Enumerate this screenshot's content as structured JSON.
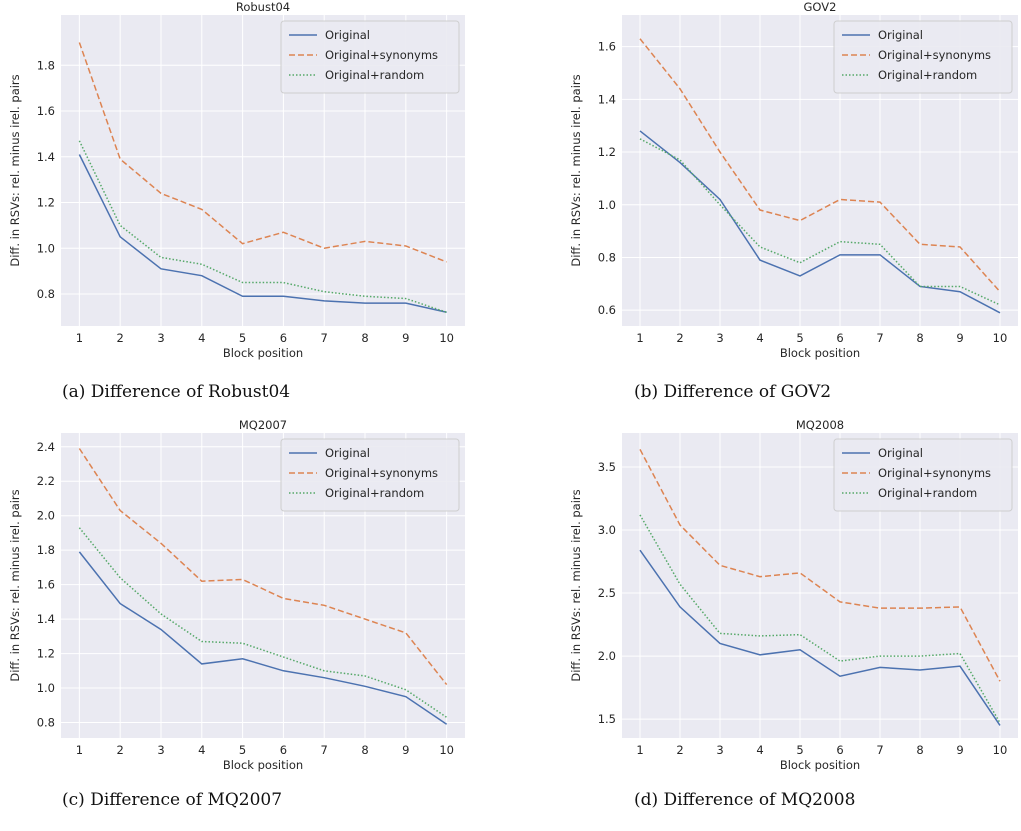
{
  "chart_data": [
    {
      "type": "line",
      "title": "Robust04",
      "caption": "(a) Difference of Robust04",
      "xlabel": "Block position",
      "ylabel": "Diff. in RSVs: rel. minus irel. pairs",
      "x": [
        1,
        2,
        3,
        4,
        5,
        6,
        7,
        8,
        9,
        10
      ],
      "xlim": [
        0.55,
        10.45
      ],
      "xticks": [
        1,
        2,
        3,
        4,
        5,
        6,
        7,
        8,
        9,
        10
      ],
      "ylim": [
        0.66,
        2.02
      ],
      "yticks": [
        0.8,
        {
          "value": 1,
          "label": "1.0"
        },
        1.2,
        1.4,
        1.6,
        1.8
      ],
      "grid": true,
      "legend": "upper right",
      "series": [
        {
          "name": "Original",
          "color": "#4c72b0",
          "linestyle": "solid",
          "values": [
            1.41,
            1.05,
            0.91,
            0.88,
            0.79,
            0.79,
            0.77,
            0.76,
            0.76,
            0.72
          ]
        },
        {
          "name": "Original+synonyms",
          "color": "#dd8452",
          "linestyle": "dashed",
          "values": [
            1.9,
            1.39,
            1.24,
            1.17,
            1.02,
            1.07,
            1.0,
            1.03,
            1.01,
            0.94
          ]
        },
        {
          "name": "Original+random",
          "color": "#55a868",
          "linestyle": "dotted",
          "values": [
            1.47,
            1.1,
            0.96,
            0.93,
            0.85,
            0.85,
            0.81,
            0.79,
            0.78,
            0.72
          ]
        }
      ]
    },
    {
      "type": "line",
      "title": "GOV2",
      "caption": "(b) Difference of GOV2",
      "xlabel": "Block position",
      "ylabel": "Diff. in RSVs: rel. minus irel. pairs",
      "x": [
        1,
        2,
        3,
        4,
        5,
        6,
        7,
        8,
        9,
        10
      ],
      "xlim": [
        0.55,
        10.45
      ],
      "xticks": [
        1,
        2,
        3,
        4,
        5,
        6,
        7,
        8,
        9,
        10
      ],
      "ylim": [
        0.54,
        1.72
      ],
      "yticks": [
        0.6,
        0.8,
        {
          "value": 1,
          "label": "1.0"
        },
        1.2,
        1.4,
        1.6
      ],
      "grid": true,
      "legend": "upper right",
      "series": [
        {
          "name": "Original",
          "color": "#4c72b0",
          "linestyle": "solid",
          "values": [
            1.28,
            1.16,
            1.02,
            0.79,
            0.73,
            0.81,
            0.81,
            0.69,
            0.67,
            0.59
          ]
        },
        {
          "name": "Original+synonyms",
          "color": "#dd8452",
          "linestyle": "dashed",
          "values": [
            1.63,
            1.44,
            1.2,
            0.98,
            0.94,
            1.02,
            1.01,
            0.85,
            0.84,
            0.67
          ]
        },
        {
          "name": "Original+random",
          "color": "#55a868",
          "linestyle": "dotted",
          "values": [
            1.25,
            1.17,
            1.0,
            0.84,
            0.78,
            0.86,
            0.85,
            0.69,
            0.69,
            0.62
          ]
        }
      ]
    },
    {
      "type": "line",
      "title": "MQ2007",
      "caption": "(c) Difference of MQ2007",
      "xlabel": "Block position",
      "ylabel": "Diff. in RSVs: rel. minus irel. pairs",
      "x": [
        1,
        2,
        3,
        4,
        5,
        6,
        7,
        8,
        9,
        10
      ],
      "xlim": [
        0.55,
        10.45
      ],
      "xticks": [
        1,
        2,
        3,
        4,
        5,
        6,
        7,
        8,
        9,
        10
      ],
      "ylim": [
        0.71,
        2.48
      ],
      "yticks": [
        0.8,
        {
          "value": 1,
          "label": "1.0"
        },
        1.2,
        1.4,
        1.6,
        1.8,
        {
          "value": 2,
          "label": "2.0"
        },
        2.2,
        2.4
      ],
      "grid": true,
      "legend": "upper right",
      "series": [
        {
          "name": "Original",
          "color": "#4c72b0",
          "linestyle": "solid",
          "values": [
            1.79,
            1.49,
            1.34,
            1.14,
            1.17,
            1.1,
            1.06,
            1.01,
            0.95,
            0.79
          ]
        },
        {
          "name": "Original+synonyms",
          "color": "#dd8452",
          "linestyle": "dashed",
          "values": [
            2.39,
            2.03,
            1.84,
            1.62,
            1.63,
            1.52,
            1.48,
            1.4,
            1.32,
            1.02
          ]
        },
        {
          "name": "Original+random",
          "color": "#55a868",
          "linestyle": "dotted",
          "values": [
            1.93,
            1.64,
            1.43,
            1.27,
            1.26,
            1.18,
            1.1,
            1.07,
            0.99,
            0.83
          ]
        }
      ]
    },
    {
      "type": "line",
      "title": "MQ2008",
      "caption": "(d) Difference of MQ2008",
      "xlabel": "Block position",
      "ylabel": "Diff. in RSVs: rel. minus irel. pairs",
      "x": [
        1,
        2,
        3,
        4,
        5,
        6,
        7,
        8,
        9,
        10
      ],
      "xlim": [
        0.55,
        10.45
      ],
      "xticks": [
        1,
        2,
        3,
        4,
        5,
        6,
        7,
        8,
        9,
        10
      ],
      "ylim": [
        1.35,
        3.77
      ],
      "yticks": [
        1.5,
        {
          "value": 2,
          "label": "2.0"
        },
        2.5,
        {
          "value": 3,
          "label": "3.0"
        },
        3.5
      ],
      "grid": true,
      "legend": "upper right",
      "series": [
        {
          "name": "Original",
          "color": "#4c72b0",
          "linestyle": "solid",
          "values": [
            2.84,
            2.39,
            2.1,
            2.01,
            2.05,
            1.84,
            1.91,
            1.89,
            1.92,
            1.45
          ]
        },
        {
          "name": "Original+synonyms",
          "color": "#dd8452",
          "linestyle": "dashed",
          "values": [
            3.64,
            3.04,
            2.72,
            2.63,
            2.66,
            2.43,
            2.38,
            2.38,
            2.39,
            1.8
          ]
        },
        {
          "name": "Original+random",
          "color": "#55a868",
          "linestyle": "dotted",
          "values": [
            3.12,
            2.57,
            2.18,
            2.16,
            2.17,
            1.96,
            2.0,
            2.0,
            2.02,
            1.47
          ]
        }
      ]
    }
  ]
}
